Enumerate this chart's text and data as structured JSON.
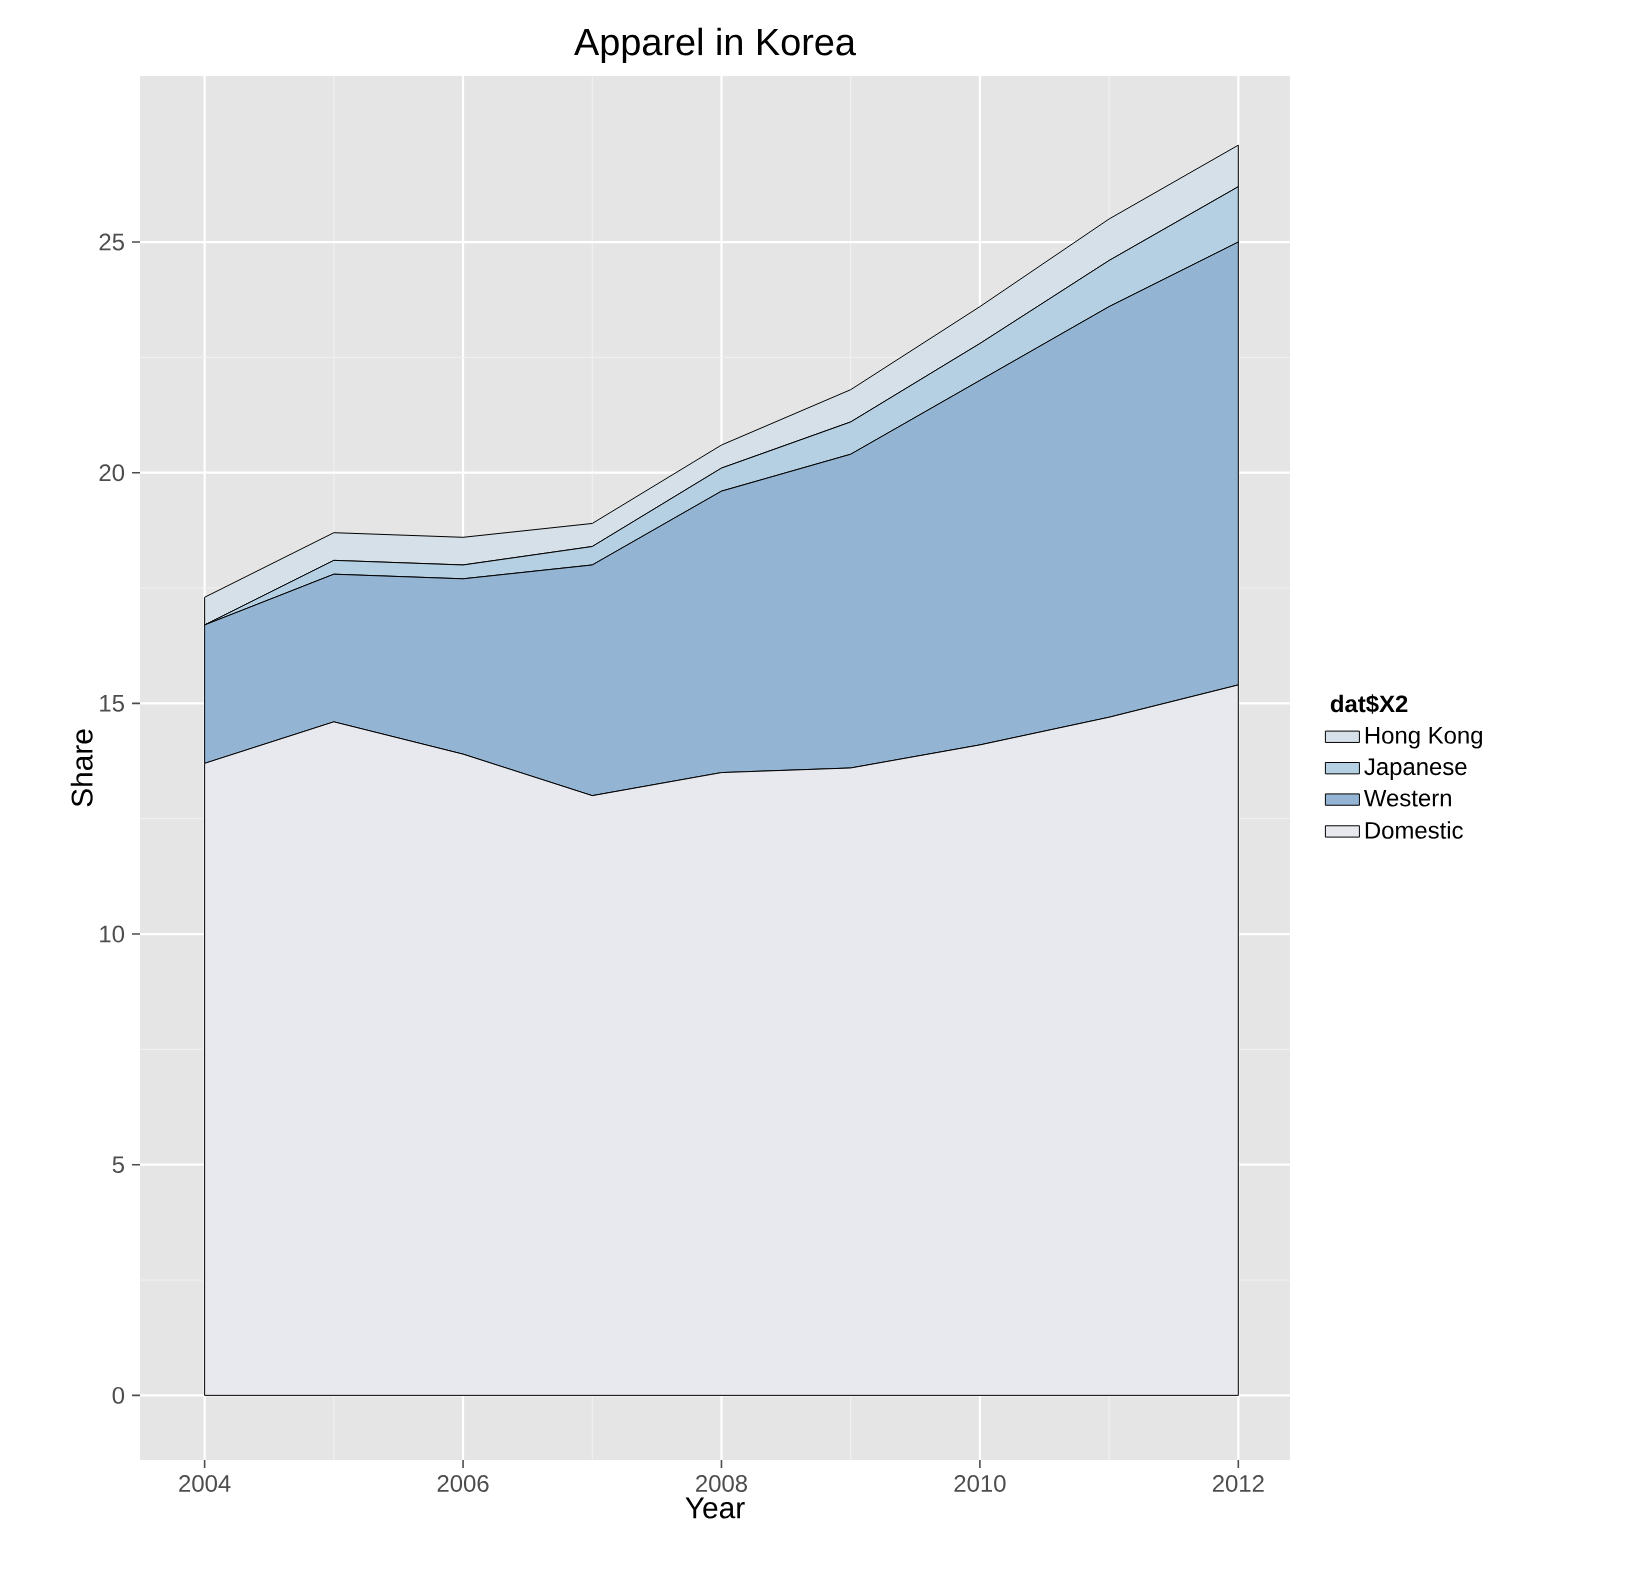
{
  "chart_data": {
    "type": "area",
    "title": "Apparel in Korea",
    "xlabel": "Year",
    "ylabel": "Share",
    "legend_title": "dat$X2",
    "x": [
      2004,
      2005,
      2006,
      2007,
      2008,
      2009,
      2010,
      2011,
      2012
    ],
    "stacked": true,
    "series": [
      {
        "name": "Domestic",
        "color": "#e8e9ef",
        "values": [
          13.7,
          14.6,
          13.9,
          13.0,
          13.5,
          13.6,
          14.1,
          14.7,
          15.4
        ]
      },
      {
        "name": "Western",
        "color": "#94b4d3",
        "values": [
          3.0,
          3.2,
          3.8,
          5.0,
          6.1,
          6.8,
          7.9,
          8.9,
          9.6
        ]
      },
      {
        "name": "Japanese",
        "color": "#b4d0e2",
        "values": [
          0.0,
          0.3,
          0.3,
          0.4,
          0.5,
          0.7,
          0.8,
          1.0,
          1.2
        ]
      },
      {
        "name": "Hong Kong",
        "color": "#d6e0e8",
        "values": [
          0.6,
          0.6,
          0.6,
          0.5,
          0.5,
          0.7,
          0.8,
          0.9,
          0.9
        ]
      }
    ],
    "xlim": [
      2003.5,
      2012.4
    ],
    "ylim": [
      -1.4,
      28.6
    ],
    "xticks": [
      2004,
      2006,
      2008,
      2010,
      2012
    ],
    "yticks": [
      0,
      5,
      10,
      15,
      20,
      25
    ],
    "grid": true,
    "legend": "right",
    "marker": "none",
    "line_style": "solid"
  }
}
